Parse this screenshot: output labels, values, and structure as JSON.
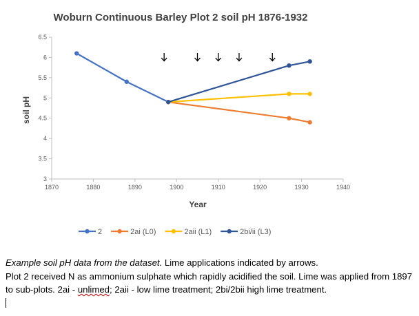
{
  "chart_data": {
    "type": "line",
    "title": "Woburn Continuous Barley Plot 2 soil pH 1876-1932",
    "xlabel": "Year",
    "ylabel": "soil pH",
    "xlim": [
      1870,
      1940
    ],
    "ylim": [
      3,
      6.5
    ],
    "x_ticks": [
      1870,
      1880,
      1890,
      1900,
      1910,
      1920,
      1930,
      1940
    ],
    "y_ticks": [
      "3",
      "3.5",
      "4",
      "4.5",
      "5",
      "5.5",
      "6",
      "6.5"
    ],
    "grid": false,
    "legend_position": "bottom",
    "lime_application_arrows_years": [
      1897,
      1905,
      1910,
      1915,
      1923
    ],
    "series": [
      {
        "name": "2",
        "color": "#4472c4",
        "points": [
          [
            1876,
            6.1
          ],
          [
            1888,
            5.4
          ],
          [
            1898,
            4.9
          ]
        ]
      },
      {
        "name": "2ai (L0)",
        "color": "#ed7d31",
        "points": [
          [
            1898,
            4.9
          ],
          [
            1927,
            4.5
          ],
          [
            1932,
            4.4
          ]
        ]
      },
      {
        "name": "2aii (L1)",
        "color": "#ffc000",
        "points": [
          [
            1898,
            4.9
          ],
          [
            1927,
            5.1
          ],
          [
            1932,
            5.1
          ]
        ]
      },
      {
        "name": "2bi/ii (L3)",
        "color": "#2f5597",
        "points": [
          [
            1898,
            4.9
          ],
          [
            1927,
            5.8
          ],
          [
            1932,
            5.9
          ]
        ]
      }
    ]
  },
  "caption": {
    "line1_italic": "Example soil pH data from the dataset.",
    "line1_rest": " Lime applications indicated by arrows.",
    "line2_before": "Plot 2 received N as ammonium sulphate which rapidly acidified the soil. Lime was applied from 1897 to sub-plots. 2ai - ",
    "line2_flagged": "unlimed",
    "line2_after": "; 2aii - low lime treatment; 2bi/2bii high lime treatment."
  }
}
